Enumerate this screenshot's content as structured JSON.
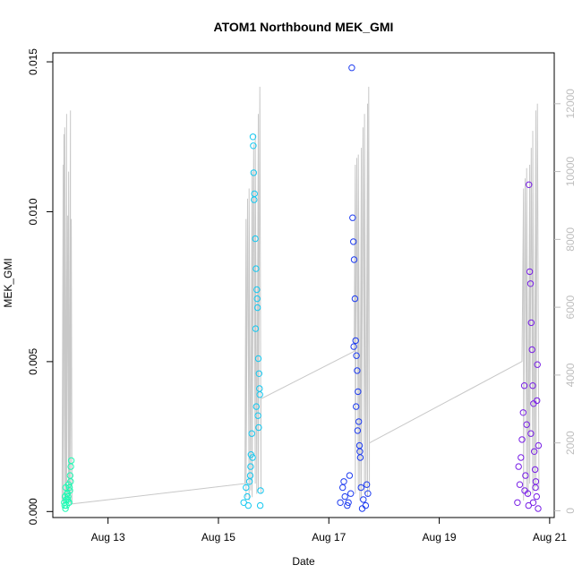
{
  "chart_data": {
    "type": "scatter",
    "title": "ATOM1 Northbound MEK_GMI",
    "xlabel": "Date",
    "ylabel": "MEK_GMI",
    "x_domain": [
      "2024-08-12T00:00",
      "2024-08-21T02:00"
    ],
    "x_ticks": [
      {
        "date": "2024-08-13T00:00",
        "label": "Aug 13"
      },
      {
        "date": "2024-08-15T00:00",
        "label": "Aug 15"
      },
      {
        "date": "2024-08-17T00:00",
        "label": "Aug 17"
      },
      {
        "date": "2024-08-19T00:00",
        "label": "Aug 19"
      },
      {
        "date": "2024-08-21T00:00",
        "label": "Aug 21"
      }
    ],
    "ylim": [
      -0.0002,
      0.0153
    ],
    "y_ticks": [
      {
        "value": 0.0,
        "label": "0.000"
      },
      {
        "value": 0.005,
        "label": "0.005"
      },
      {
        "value": 0.01,
        "label": "0.010"
      },
      {
        "value": 0.015,
        "label": "0.015"
      }
    ],
    "y2lim": [
      -200,
      13500
    ],
    "y2_ticks": [
      {
        "value": 0,
        "label": "0"
      },
      {
        "value": 2000,
        "label": "2000"
      },
      {
        "value": 4000,
        "label": "4000"
      },
      {
        "value": 6000,
        "label": "6000"
      },
      {
        "value": 8000,
        "label": "8000"
      },
      {
        "value": 10000,
        "label": "10000"
      },
      {
        "value": 12000,
        "label": "12000"
      }
    ],
    "grid": false,
    "legend": "none",
    "colors": {
      "secondary_line": "#c8c8c8",
      "axis": "#000000",
      "right_axis": "#bebebe"
    },
    "series": [
      {
        "color": "#1efab4",
        "x": [
          "2024-08-12T05:00",
          "2024-08-12T05:18",
          "2024-08-12T05:36",
          "2024-08-12T05:54",
          "2024-08-12T06:12",
          "2024-08-12T06:30",
          "2024-08-12T06:48",
          "2024-08-12T07:06",
          "2024-08-12T07:24",
          "2024-08-12T07:42",
          "2024-08-12T05:10",
          "2024-08-12T05:50",
          "2024-08-12T06:20",
          "2024-08-12T06:55",
          "2024-08-12T07:30",
          "2024-08-12T07:50",
          "2024-08-12T08:00",
          "2024-08-12T06:40",
          "2024-08-12T07:15",
          "2024-08-12T05:30"
        ],
        "y": [
          0.0003,
          0.0005,
          0.0008,
          0.0002,
          0.0006,
          0.0004,
          0.0009,
          0.0003,
          0.0007,
          0.001,
          0.0002,
          0.0004,
          0.0006,
          0.0003,
          0.0012,
          0.0015,
          0.0017,
          0.0005,
          0.0008,
          0.0001
        ]
      },
      {
        "color": "#14c8f0",
        "x": [
          "2024-08-15T11:00",
          "2024-08-15T12:00",
          "2024-08-15T13:00",
          "2024-08-15T14:00",
          "2024-08-15T14:30",
          "2024-08-15T15:00",
          "2024-08-15T15:20",
          "2024-08-15T15:40",
          "2024-08-15T16:00",
          "2024-08-15T16:20",
          "2024-08-15T16:40",
          "2024-08-15T17:00",
          "2024-08-15T17:20",
          "2024-08-15T17:40",
          "2024-08-15T18:00",
          "2024-08-15T12:30",
          "2024-08-15T13:30",
          "2024-08-15T14:10",
          "2024-08-15T15:10",
          "2024-08-15T16:10",
          "2024-08-15T16:50",
          "2024-08-15T17:10",
          "2024-08-15T17:30",
          "2024-08-15T18:10",
          "2024-08-15T18:20",
          "2024-08-15T16:30",
          "2024-08-15T15:30",
          "2024-08-15T14:50",
          "2024-08-15T17:50",
          "2024-08-15T13:50"
        ],
        "y": [
          0.0003,
          0.0008,
          0.0002,
          0.0015,
          0.0026,
          0.0125,
          0.0113,
          0.0106,
          0.0091,
          0.0081,
          0.0074,
          0.0068,
          0.0051,
          0.0046,
          0.0039,
          0.0005,
          0.001,
          0.0019,
          0.0122,
          0.0061,
          0.0071,
          0.0032,
          0.0028,
          0.0002,
          0.0007,
          0.0035,
          0.0104,
          0.0018,
          0.0041,
          0.0012
        ]
      },
      {
        "color": "#1e3cf0",
        "x": [
          "2024-08-17T05:00",
          "2024-08-17T06:00",
          "2024-08-17T07:00",
          "2024-08-17T08:00",
          "2024-08-17T09:00",
          "2024-08-17T10:00",
          "2024-08-17T10:20",
          "2024-08-17T10:40",
          "2024-08-17T11:00",
          "2024-08-17T11:20",
          "2024-08-17T11:40",
          "2024-08-17T12:00",
          "2024-08-17T12:20",
          "2024-08-17T12:40",
          "2024-08-17T13:00",
          "2024-08-17T13:20",
          "2024-08-17T13:40",
          "2024-08-17T14:00",
          "2024-08-17T15:00",
          "2024-08-17T16:00",
          "2024-08-17T17:00",
          "2024-08-17T06:30",
          "2024-08-17T08:30",
          "2024-08-17T09:30",
          "2024-08-17T10:50",
          "2024-08-17T11:50",
          "2024-08-17T12:30",
          "2024-08-17T13:30",
          "2024-08-17T14:30",
          "2024-08-17T16:30"
        ],
        "y": [
          0.0003,
          0.0008,
          0.0005,
          0.0002,
          0.0012,
          0.0148,
          0.0098,
          0.009,
          0.0084,
          0.0071,
          0.0057,
          0.0052,
          0.0047,
          0.004,
          0.003,
          0.0022,
          0.0018,
          0.0008,
          0.0004,
          0.0002,
          0.0006,
          0.001,
          0.0003,
          0.0006,
          0.0055,
          0.0035,
          0.0027,
          0.002,
          0.0001,
          0.0009
        ]
      },
      {
        "color": "#781ee6",
        "x": [
          "2024-08-20T10:00",
          "2024-08-20T11:00",
          "2024-08-20T12:00",
          "2024-08-20T13:00",
          "2024-08-20T14:00",
          "2024-08-20T14:30",
          "2024-08-20T15:00",
          "2024-08-20T15:20",
          "2024-08-20T15:40",
          "2024-08-20T16:00",
          "2024-08-20T16:20",
          "2024-08-20T16:40",
          "2024-08-20T17:00",
          "2024-08-20T17:20",
          "2024-08-20T17:40",
          "2024-08-20T18:00",
          "2024-08-20T18:20",
          "2024-08-20T18:40",
          "2024-08-20T19:00",
          "2024-08-20T11:30",
          "2024-08-20T12:30",
          "2024-08-20T13:30",
          "2024-08-20T14:50",
          "2024-08-20T15:50",
          "2024-08-20T16:50",
          "2024-08-20T17:50",
          "2024-08-20T18:30",
          "2024-08-20T19:10",
          "2024-08-20T10:30",
          "2024-08-20T13:10"
        ],
        "y": [
          0.0003,
          0.0009,
          0.0024,
          0.0042,
          0.0029,
          0.0006,
          0.0109,
          0.008,
          0.0076,
          0.0063,
          0.0054,
          0.0042,
          0.0036,
          0.002,
          0.0014,
          0.001,
          0.0005,
          0.0049,
          0.0001,
          0.0018,
          0.0033,
          0.0012,
          0.0002,
          0.0026,
          0.0003,
          0.0008,
          0.0037,
          0.0022,
          0.0015,
          0.0007
        ]
      }
    ],
    "secondary_series": {
      "axis": "right",
      "x": [
        "2024-08-12T04:00",
        "2024-08-12T04:30",
        "2024-08-12T04:30",
        "2024-08-12T04:50",
        "2024-08-12T05:10",
        "2024-08-12T05:10",
        "2024-08-12T05:40",
        "2024-08-12T06:00",
        "2024-08-12T06:00",
        "2024-08-12T06:30",
        "2024-08-12T06:50",
        "2024-08-12T06:50",
        "2024-08-12T07:10",
        "2024-08-12T07:40",
        "2024-08-12T07:40",
        "2024-08-12T08:00",
        "2024-08-12T08:20",
        "2024-08-12T08:20",
        "2024-08-15T11:30",
        "2024-08-15T12:00",
        "2024-08-15T12:00",
        "2024-08-15T12:40",
        "2024-08-15T13:20",
        "2024-08-15T13:20",
        "2024-08-15T14:00",
        "2024-08-15T14:40",
        "2024-08-15T14:40",
        "2024-08-15T15:20",
        "2024-08-15T16:00",
        "2024-08-15T16:00",
        "2024-08-15T16:40",
        "2024-08-15T17:20",
        "2024-08-15T17:20",
        "2024-08-15T18:00",
        "2024-08-15T18:30",
        "2024-08-15T18:30",
        "2024-08-17T11:00",
        "2024-08-17T11:30",
        "2024-08-17T11:30",
        "2024-08-17T12:10",
        "2024-08-17T12:50",
        "2024-08-17T12:50",
        "2024-08-17T13:30",
        "2024-08-17T14:10",
        "2024-08-17T14:10",
        "2024-08-17T14:50",
        "2024-08-17T15:30",
        "2024-08-17T15:30",
        "2024-08-17T16:10",
        "2024-08-17T16:50",
        "2024-08-17T16:50",
        "2024-08-17T17:20",
        "2024-08-17T17:40",
        "2024-08-17T17:40",
        "2024-08-20T12:00",
        "2024-08-20T12:40",
        "2024-08-20T12:40",
        "2024-08-20T13:20",
        "2024-08-20T14:00",
        "2024-08-20T14:00",
        "2024-08-20T14:40",
        "2024-08-20T15:20",
        "2024-08-20T15:20",
        "2024-08-20T16:00",
        "2024-08-20T16:40",
        "2024-08-20T16:40",
        "2024-08-20T17:20",
        "2024-08-20T18:00",
        "2024-08-20T18:00",
        "2024-08-20T18:40",
        "2024-08-20T19:20",
        "2024-08-20T19:20"
      ],
      "y": [
        300,
        10200,
        200,
        11100,
        300,
        11300,
        400,
        11700,
        300,
        8700,
        200,
        10000,
        300,
        11800,
        200,
        8600,
        300,
        200,
        800,
        8600,
        400,
        9200,
        300,
        9500,
        600,
        10000,
        400,
        10800,
        800,
        11100,
        500,
        11700,
        600,
        12500,
        500,
        3300,
        4700,
        10200,
        500,
        10400,
        600,
        10500,
        300,
        10700,
        400,
        11300,
        500,
        11700,
        700,
        12000,
        400,
        12500,
        600,
        2000,
        4400,
        9500,
        300,
        9800,
        600,
        10100,
        400,
        10200,
        800,
        10700,
        500,
        11200,
        600,
        11800,
        700,
        12000,
        800,
        600
      ]
    }
  }
}
